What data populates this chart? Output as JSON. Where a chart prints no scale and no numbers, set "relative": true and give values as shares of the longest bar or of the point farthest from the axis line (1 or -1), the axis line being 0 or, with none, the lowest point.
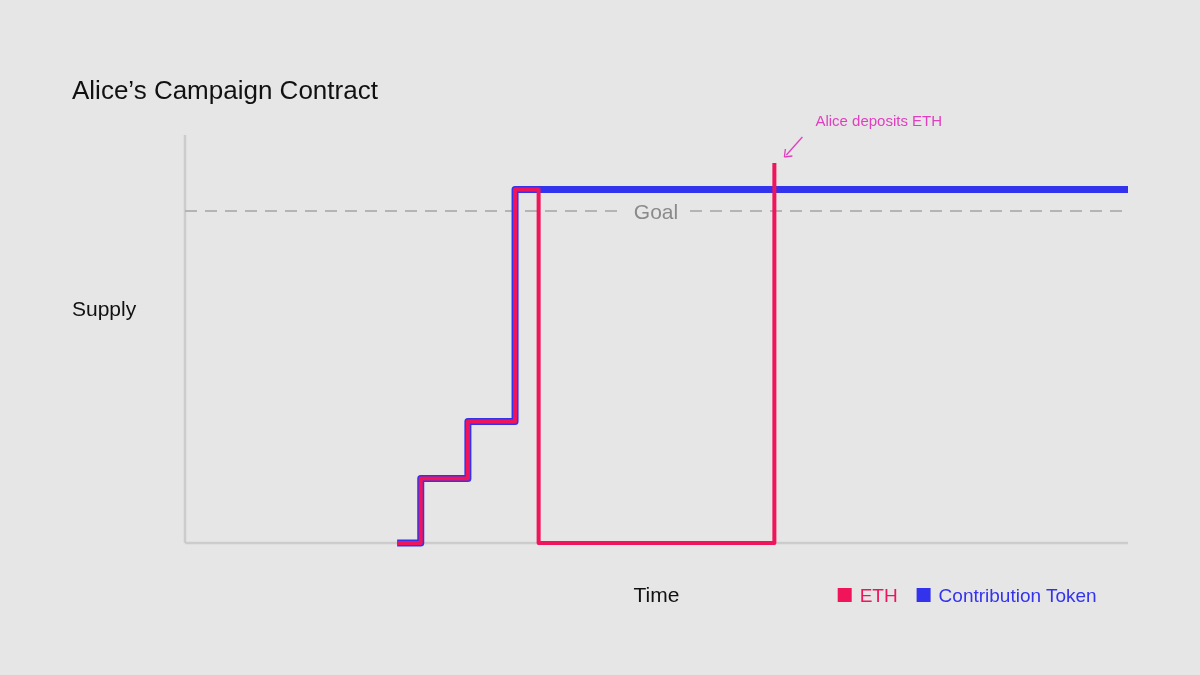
{
  "chart_data": {
    "type": "step",
    "title": "Alice’s Campaign Contract",
    "xlabel": "Time",
    "ylabel": "Supply",
    "relative": true,
    "legend": "bottom right",
    "categories": [
      null,
      null,
      null,
      null,
      null,
      null,
      null,
      null,
      null,
      null,
      null,
      null,
      null,
      null,
      null,
      null,
      null,
      null,
      null,
      null,
      null,
      null,
      null,
      null,
      null,
      null,
      null,
      null,
      null,
      null,
      null,
      null,
      null,
      null,
      null,
      null,
      null,
      null,
      null,
      null,
      null
    ],
    "series": [
      {
        "name": "ETH",
        "color": "#f0145a",
        "values": [
          null,
          null,
          null,
          null,
          null,
          null,
          null,
          null,
          null,
          0,
          0.17,
          0.17,
          0.32,
          0.32,
          0.93,
          0,
          0,
          0,
          0,
          0,
          0,
          0,
          0,
          0,
          0,
          1,
          null,
          null,
          null,
          null,
          null,
          null,
          null,
          null,
          null,
          null,
          null,
          null,
          null,
          null,
          null
        ]
      },
      {
        "name": "Contribution Token",
        "color": "#3333ee",
        "values": [
          null,
          null,
          null,
          null,
          null,
          null,
          null,
          null,
          null,
          0,
          0.17,
          0.17,
          0.32,
          0.32,
          0.93,
          0.93,
          0.93,
          0.93,
          0.93,
          0.93,
          0.93,
          0.93,
          0.93,
          0.93,
          0.93,
          0.93,
          0.93,
          0.93,
          0.93,
          0.93,
          0.93,
          0.93,
          0.93,
          0.93,
          0.93,
          0.93,
          0.93,
          0.93,
          0.93,
          0.93,
          0.93
        ]
      }
    ],
    "ref_lines": [
      {
        "axis": "y",
        "value": 0.874,
        "label": "Goal",
        "color": "#b4b4b4",
        "line_style": "dashed"
      }
    ],
    "annotations": [
      "Alice deposits ETH"
    ],
    "line_style": "solid"
  }
}
